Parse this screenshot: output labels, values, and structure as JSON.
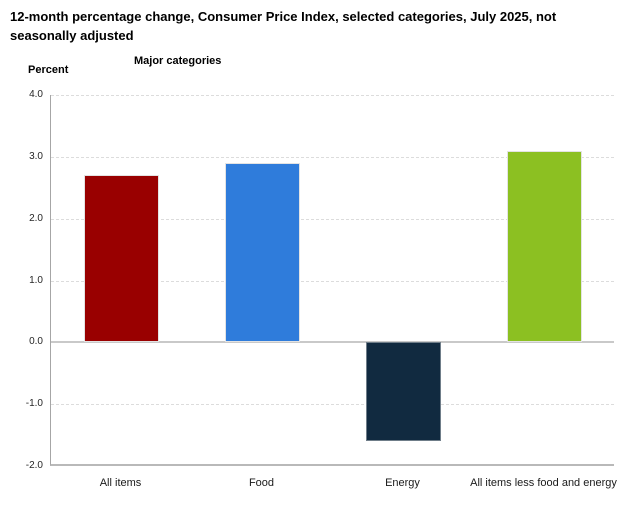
{
  "header": {
    "title": "12-month percentage change, Consumer Price Index, selected categories, July 2025, not seasonally adjusted",
    "y_axis_caption": "Percent",
    "x_axis_caption": "Major categories"
  },
  "colors": {
    "background": "#ffffff",
    "grid_dashed": "#dcdcdc",
    "zero_line": "#c9c9c9",
    "axis_line": "#a6a6a6",
    "text": "#262626"
  },
  "chart_data": {
    "type": "bar",
    "title": "12-month percentage change, Consumer Price Index, selected categories, July 2025, not seasonally adjusted",
    "xlabel": "Major categories",
    "ylabel": "Percent",
    "categories": [
      "All items",
      "Food",
      "Energy",
      "All items less food and energy"
    ],
    "values": [
      2.7,
      2.9,
      -1.6,
      3.1
    ],
    "bar_colors": [
      "#990000",
      "#2f7cdb",
      "#112a40",
      "#8cc022"
    ],
    "ylim": [
      -2.0,
      4.0
    ],
    "yticks": [
      "4.0",
      "3.0",
      "2.0",
      "1.0",
      "0.0",
      "-1.0",
      "-2.0"
    ],
    "grid": "horizontal-dashed",
    "legend": "none"
  }
}
